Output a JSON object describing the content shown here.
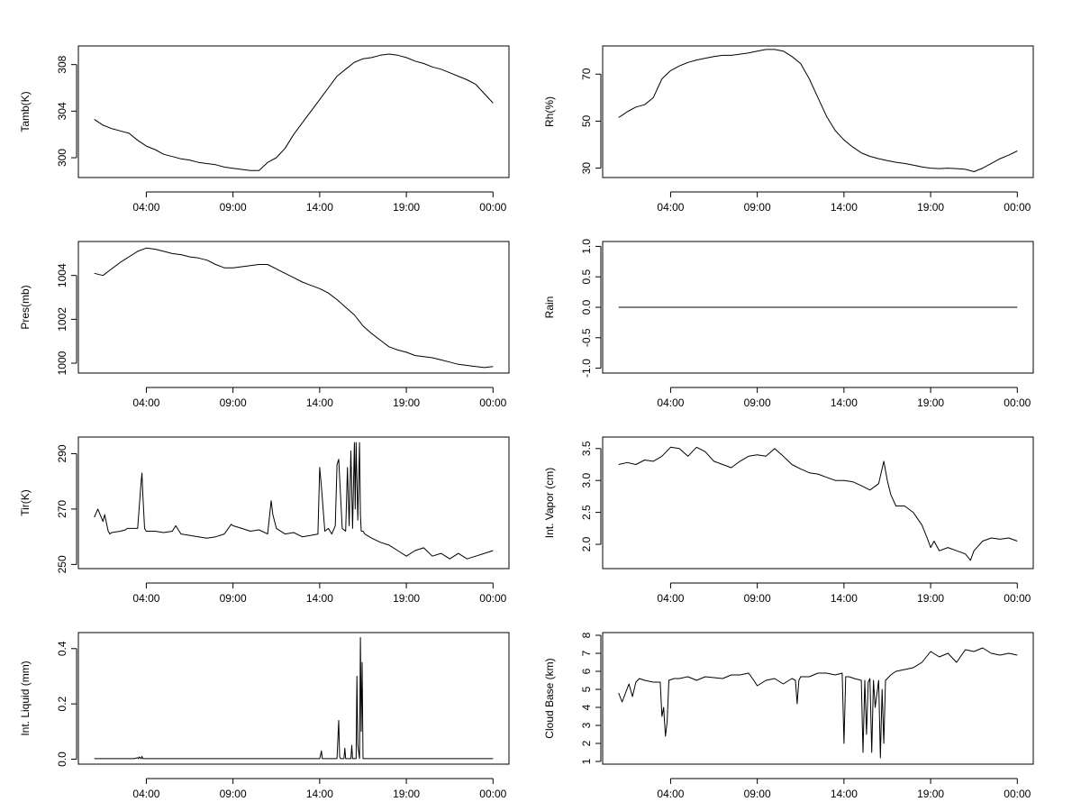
{
  "chart_data": [
    {
      "type": "line",
      "ylabel": "Tamb(K)",
      "xticks": [
        "04:00",
        "09:00",
        "14:00",
        "19:00",
        "00:00"
      ],
      "yticks": [
        300,
        304,
        308
      ],
      "ylim": [
        298.3,
        309.6
      ],
      "series": [
        {
          "x": [
            1.0,
            1.5,
            2.0,
            2.5,
            3.0,
            3.5,
            4.0,
            4.5,
            5.0,
            5.5,
            6.0,
            6.5,
            7.0,
            7.5,
            8.0,
            8.5,
            9.0,
            9.5,
            10.0,
            10.5,
            11.0,
            11.5,
            12.0,
            12.5,
            13.0,
            13.5,
            14.0,
            14.5,
            15.0,
            15.5,
            16.0,
            16.5,
            17.0,
            17.5,
            18.0,
            18.5,
            19.0,
            19.5,
            20.0,
            20.5,
            21.0,
            21.5,
            22.0,
            22.5,
            23.0,
            23.5,
            24.0
          ],
          "values": [
            303.3,
            302.8,
            302.5,
            302.3,
            302.1,
            301.5,
            301.0,
            300.7,
            300.3,
            300.1,
            299.9,
            299.8,
            299.6,
            299.5,
            299.4,
            299.2,
            299.1,
            299.0,
            298.9,
            298.9,
            299.6,
            300.0,
            300.8,
            302.0,
            303.0,
            304.0,
            305.0,
            306.0,
            307.0,
            307.6,
            308.2,
            308.5,
            308.6,
            308.8,
            308.9,
            308.8,
            308.6,
            308.3,
            308.1,
            307.8,
            307.6,
            307.3,
            307.0,
            306.7,
            306.3,
            305.5,
            304.7
          ]
        }
      ]
    },
    {
      "type": "line",
      "ylabel": "Rh(%)",
      "xticks": [
        "04:00",
        "09:00",
        "14:00",
        "19:00",
        "00:00"
      ],
      "yticks": [
        30,
        50,
        70
      ],
      "ylim": [
        26,
        82
      ],
      "series": [
        {
          "x": [
            1.0,
            1.5,
            2.0,
            2.5,
            3.0,
            3.5,
            4.0,
            4.5,
            5.0,
            5.5,
            6.0,
            6.5,
            7.0,
            7.5,
            8.0,
            8.5,
            9.0,
            9.5,
            10.0,
            10.5,
            11.0,
            11.5,
            12.0,
            12.5,
            13.0,
            13.5,
            14.0,
            14.5,
            15.0,
            15.5,
            16.0,
            16.5,
            17.0,
            17.5,
            18.0,
            18.5,
            19.0,
            19.5,
            20.0,
            20.5,
            21.0,
            21.5,
            22.0,
            22.5,
            23.0,
            23.5,
            24.0
          ],
          "values": [
            51.5,
            54,
            56,
            57,
            60,
            68,
            71.5,
            73.5,
            75,
            76,
            76.8,
            77.5,
            78,
            78,
            78.5,
            79,
            79.8,
            80.5,
            80.5,
            79.8,
            77.5,
            74.5,
            68,
            60,
            52,
            46,
            42,
            39,
            36.5,
            35,
            34,
            33.2,
            32.5,
            32,
            31.3,
            30.5,
            30,
            29.8,
            30,
            29.8,
            29.5,
            28.5,
            30,
            32,
            34,
            35.5,
            37.3
          ]
        }
      ]
    },
    {
      "type": "line",
      "ylabel": "Pres(mb)",
      "xticks": [
        "04:00",
        "09:00",
        "14:00",
        "19:00",
        "00:00"
      ],
      "yticks": [
        1000,
        1002,
        1004
      ],
      "ylim": [
        999.55,
        1005.55
      ],
      "series": [
        {
          "x": [
            1.0,
            1.5,
            2.0,
            2.5,
            3.0,
            3.5,
            4.0,
            4.5,
            5.0,
            5.5,
            6.0,
            6.5,
            7.0,
            7.5,
            8.0,
            8.5,
            9.0,
            9.5,
            10.0,
            10.5,
            11.0,
            11.5,
            12.0,
            12.5,
            13.0,
            13.5,
            14.0,
            14.5,
            15.0,
            15.5,
            16.0,
            16.5,
            17.0,
            17.5,
            18.0,
            18.5,
            19.0,
            19.5,
            20.0,
            20.5,
            21.0,
            21.5,
            22.0,
            22.5,
            23.0,
            23.5,
            24.0
          ],
          "values": [
            1004.1,
            1004.0,
            1004.3,
            1004.6,
            1004.85,
            1005.1,
            1005.25,
            1005.2,
            1005.1,
            1005.0,
            1004.95,
            1004.85,
            1004.8,
            1004.7,
            1004.5,
            1004.35,
            1004.35,
            1004.4,
            1004.45,
            1004.5,
            1004.5,
            1004.3,
            1004.1,
            1003.9,
            1003.7,
            1003.55,
            1003.4,
            1003.2,
            1002.9,
            1002.55,
            1002.2,
            1001.7,
            1001.35,
            1001.05,
            1000.75,
            1000.6,
            1000.5,
            1000.35,
            1000.3,
            1000.25,
            1000.15,
            1000.05,
            999.95,
            999.9,
            999.85,
            999.8,
            999.85
          ]
        }
      ]
    },
    {
      "type": "line",
      "ylabel": "Rain",
      "xticks": [
        "04:00",
        "09:00",
        "14:00",
        "19:00",
        "00:00"
      ],
      "yticks": [
        -1.0,
        -0.5,
        0.0,
        0.5,
        1.0
      ],
      "ylim": [
        -1.08,
        1.08
      ],
      "series": [
        {
          "x": [
            1.0,
            24.0
          ],
          "values": [
            0.0,
            0.0
          ]
        }
      ]
    },
    {
      "type": "line",
      "ylabel": "Tir(K)",
      "xticks": [
        "04:00",
        "09:00",
        "14:00",
        "19:00",
        "00:00"
      ],
      "yticks": [
        250,
        270,
        290
      ],
      "ylim": [
        248.5,
        296
      ],
      "series": [
        {
          "x": [
            1.0,
            1.2,
            1.5,
            1.6,
            1.8,
            1.9,
            2.0,
            2.5,
            2.8,
            2.9,
            3.0,
            3.5,
            3.7,
            3.75,
            3.8,
            3.9,
            4.0,
            4.5,
            5.0,
            5.5,
            5.7,
            6.0,
            6.5,
            7.0,
            7.5,
            8.0,
            8.5,
            8.9,
            9.0,
            9.5,
            10.0,
            10.5,
            11.0,
            11.2,
            11.3,
            11.5,
            12.0,
            12.5,
            13.0,
            13.5,
            13.9,
            14.0,
            14.1,
            14.3,
            14.5,
            14.7,
            14.9,
            15.0,
            15.1,
            15.3,
            15.5,
            15.6,
            15.7,
            15.8,
            15.9,
            16.0,
            16.05,
            16.1,
            16.2,
            16.3,
            16.35,
            16.4,
            16.5,
            16.6,
            17.0,
            17.5,
            18.0,
            18.5,
            19.0,
            19.5,
            20.0,
            20.5,
            21.0,
            21.5,
            22.0,
            22.5,
            23.0,
            23.5,
            24.0
          ],
          "values": [
            267.0,
            270.0,
            265.5,
            268.0,
            262.0,
            261.0,
            261.5,
            262.0,
            262.5,
            263.0,
            263.0,
            263.0,
            280.0,
            283.0,
            275.0,
            263.0,
            262.0,
            262.0,
            261.5,
            262.0,
            264.0,
            261.0,
            260.5,
            260.0,
            259.5,
            260.0,
            261.0,
            264.5,
            264.0,
            263.0,
            262.0,
            262.5,
            261.0,
            273.0,
            268.0,
            263.0,
            261.0,
            261.5,
            260.0,
            260.5,
            261.0,
            285.0,
            278.0,
            262.0,
            263.0,
            261.0,
            264.0,
            286.0,
            288.0,
            263.0,
            262.0,
            285.0,
            264.0,
            291.0,
            263.0,
            294.0,
            270.0,
            294.0,
            266.0,
            294.0,
            268.0,
            262.0,
            262.0,
            261.0,
            259.5,
            258.0,
            257.0,
            255.0,
            253.0,
            255.0,
            256.0,
            253.0,
            254.0,
            252.0,
            254.0,
            252.0,
            253.0,
            254.0,
            255.0
          ]
        }
      ]
    },
    {
      "type": "line",
      "ylabel": "Int. Vapor (cm)",
      "xticks": [
        "04:00",
        "09:00",
        "14:00",
        "19:00",
        "00:00"
      ],
      "yticks": [
        2.0,
        2.5,
        3.0,
        3.5
      ],
      "ylim": [
        1.62,
        3.68
      ],
      "series": [
        {
          "x": [
            1.0,
            1.5,
            2.0,
            2.5,
            3.0,
            3.5,
            4.0,
            4.5,
            5.0,
            5.5,
            6.0,
            6.5,
            7.0,
            7.5,
            8.0,
            8.5,
            9.0,
            9.5,
            10.0,
            10.5,
            11.0,
            11.5,
            12.0,
            12.5,
            13.0,
            13.5,
            14.0,
            14.5,
            15.0,
            15.5,
            16.0,
            16.3,
            16.5,
            16.7,
            17.0,
            17.5,
            18.0,
            18.5,
            18.8,
            19.0,
            19.2,
            19.5,
            20.0,
            20.5,
            21.0,
            21.3,
            21.5,
            22.0,
            22.5,
            23.0,
            23.5,
            24.0
          ],
          "values": [
            3.25,
            3.28,
            3.25,
            3.32,
            3.3,
            3.38,
            3.52,
            3.5,
            3.38,
            3.52,
            3.45,
            3.3,
            3.25,
            3.2,
            3.3,
            3.38,
            3.4,
            3.38,
            3.5,
            3.38,
            3.25,
            3.18,
            3.12,
            3.1,
            3.05,
            3.0,
            3.0,
            2.98,
            2.92,
            2.85,
            2.95,
            3.3,
            3.0,
            2.78,
            2.6,
            2.6,
            2.5,
            2.3,
            2.1,
            1.95,
            2.05,
            1.9,
            1.95,
            1.9,
            1.85,
            1.75,
            1.9,
            2.05,
            2.1,
            2.08,
            2.1,
            2.05
          ]
        }
      ]
    },
    {
      "type": "line",
      "ylabel": "Int. Liquid (mm)",
      "xticks": [
        "04:00",
        "09:00",
        "14:00",
        "19:00",
        "00:00"
      ],
      "yticks": [
        0.0,
        0.2,
        0.4
      ],
      "ylim": [
        -0.018,
        0.458
      ],
      "series": [
        {
          "x": [
            1.0,
            3.3,
            3.5,
            3.55,
            3.6,
            3.7,
            3.75,
            3.8,
            14.0,
            14.1,
            14.15,
            14.2,
            15.0,
            15.1,
            15.15,
            15.2,
            15.4,
            15.45,
            15.5,
            15.8,
            15.85,
            15.9,
            16.1,
            16.15,
            16.2,
            16.3,
            16.35,
            16.4,
            16.45,
            16.5,
            16.55,
            24.0
          ],
          "values": [
            0.002,
            0.002,
            0.005,
            0.002,
            0.008,
            0.002,
            0.01,
            0.002,
            0.002,
            0.03,
            0.002,
            0.002,
            0.002,
            0.14,
            0.01,
            0.002,
            0.002,
            0.04,
            0.002,
            0.002,
            0.05,
            0.002,
            0.002,
            0.3,
            0.05,
            0.002,
            0.44,
            0.1,
            0.35,
            0.002,
            0.002,
            0.002
          ]
        }
      ]
    },
    {
      "type": "line",
      "ylabel": "Cloud Base (km)",
      "xticks": [
        "04:00",
        "09:00",
        "14:00",
        "19:00",
        "00:00"
      ],
      "yticks": [
        1,
        2,
        3,
        4,
        5,
        6,
        7,
        8
      ],
      "ylim": [
        0.85,
        8.15
      ],
      "series": [
        {
          "x": [
            1.0,
            1.2,
            1.4,
            1.6,
            1.8,
            2.0,
            2.2,
            2.5,
            3.0,
            3.4,
            3.5,
            3.6,
            3.7,
            3.8,
            3.9,
            4.2,
            4.5,
            5.0,
            5.5,
            6.0,
            7.0,
            7.5,
            8.0,
            8.5,
            8.8,
            9.0,
            9.5,
            10.0,
            10.5,
            11.0,
            11.2,
            11.3,
            11.4,
            11.5,
            12.0,
            12.5,
            13.0,
            13.5,
            13.9,
            14.0,
            14.1,
            14.3,
            14.6,
            15.0,
            15.1,
            15.2,
            15.3,
            15.4,
            15.5,
            15.6,
            15.7,
            15.8,
            16.0,
            16.1,
            16.2,
            16.3,
            16.4,
            16.5,
            16.7,
            17.0,
            17.5,
            18.0,
            18.5,
            19.0,
            19.5,
            20.0,
            20.5,
            21.0,
            21.5,
            22.0,
            22.5,
            23.0,
            23.5,
            24.0
          ],
          "values": [
            4.8,
            4.3,
            4.8,
            5.3,
            4.6,
            5.4,
            5.6,
            5.5,
            5.4,
            5.4,
            3.5,
            4.0,
            2.4,
            3.2,
            5.5,
            5.6,
            5.6,
            5.7,
            5.5,
            5.7,
            5.6,
            5.8,
            5.8,
            5.9,
            5.5,
            5.2,
            5.5,
            5.6,
            5.3,
            5.6,
            5.5,
            4.2,
            5.5,
            5.7,
            5.7,
            5.9,
            5.9,
            5.8,
            5.9,
            2.0,
            5.7,
            5.7,
            5.6,
            5.5,
            1.5,
            5.5,
            2.5,
            5.4,
            5.6,
            1.5,
            5.5,
            4.0,
            5.5,
            1.2,
            5.0,
            2.0,
            5.5,
            5.6,
            5.8,
            6.0,
            6.1,
            6.2,
            6.5,
            7.1,
            6.8,
            7.0,
            6.5,
            7.2,
            7.1,
            7.3,
            7.0,
            6.9,
            7.0,
            6.9
          ]
        }
      ]
    }
  ]
}
